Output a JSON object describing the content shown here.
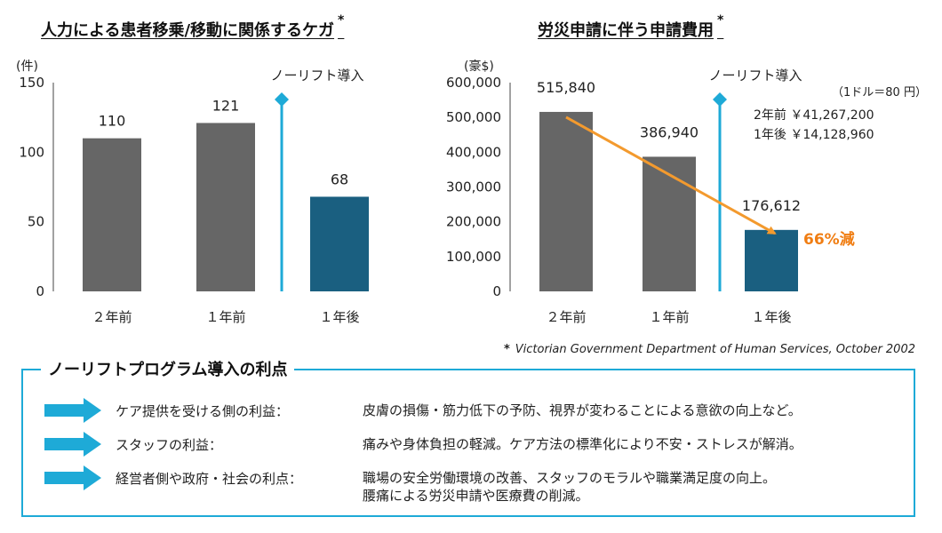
{
  "charts": [
    {
      "title": "人力による患者移乗/移動に関係するケガ",
      "star": "*",
      "chart_data": {
        "type": "bar",
        "title": "人力による患者移乗/移動に関係するケガ",
        "ylabel": "(件)",
        "categories": [
          "２年前",
          "１年前",
          "１年後"
        ],
        "values": [
          110,
          121,
          68
        ],
        "ylim": [
          0,
          150
        ],
        "yticks": [
          "0",
          "50",
          "100",
          "150"
        ],
        "data_labels": [
          "110",
          "121",
          "68"
        ],
        "annotation": "ノーリフト導入",
        "grid": false
      },
      "colors": {
        "before": "#666666",
        "after": "#1a5f80",
        "marker": "#1eaad7"
      }
    },
    {
      "title": "労災申請に伴う申請費用",
      "star": "*",
      "chart_data": {
        "type": "bar",
        "title": "労災申請に伴う申請費用",
        "ylabel": "(豪$)",
        "categories": [
          "２年前",
          "１年前",
          "１年後"
        ],
        "values": [
          515840,
          386940,
          176612
        ],
        "ylim": [
          0,
          600000
        ],
        "yticks": [
          "0",
          "100,000",
          "200,000",
          "300,000",
          "400,000",
          "500,000",
          "600,000"
        ],
        "data_labels": [
          "515,840",
          "386,940",
          "176,612"
        ],
        "annotation": "ノーリフト導入",
        "trend_label": "66%減",
        "grid": false
      },
      "colors": {
        "before": "#666666",
        "after": "#1a5f80",
        "marker": "#1eaad7",
        "trend": "#f39a2e",
        "trend_text": "#f07d12"
      },
      "exchange_note": "（1ドル＝80 円）",
      "yen_lines": [
        "2年前 ￥41,267,200",
        "1年後 ￥14,128,960"
      ]
    }
  ],
  "source": {
    "star": "*",
    "text": "Victorian Government Department of Human Services, October 2002"
  },
  "benefits": {
    "title": "ノーリフトプログラム導入の利点",
    "arrow_color": "#1eaad7",
    "items": [
      {
        "label": "ケア提供を受ける側の利益：",
        "desc": [
          "皮膚の損傷・筋力低下の予防、視界が変わることによる意欲の向上など。"
        ]
      },
      {
        "label": "スタッフの利益：",
        "desc": [
          "痛みや身体負担の軽減。ケア方法の標準化により不安・ストレスが解消。"
        ]
      },
      {
        "label": "経営者側や政府・社会の利点：",
        "desc": [
          "職場の安全労働環境の改善、スタッフのモラルや職業満足度の向上。",
          "腰痛による労災申請や医療費の削減。"
        ]
      }
    ]
  }
}
